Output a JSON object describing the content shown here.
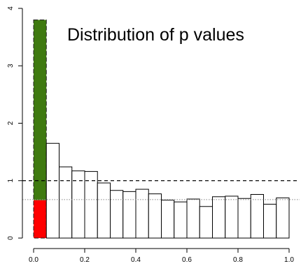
{
  "chart_data": {
    "type": "bar",
    "title": "Distribution of p values",
    "xlabel": "",
    "ylabel": "",
    "xlim": [
      0,
      1
    ],
    "ylim": [
      0,
      4
    ],
    "x_ticks": [
      "0.0",
      "0.2",
      "0.4",
      "0.6",
      "0.8",
      "1.0"
    ],
    "y_ticks": [
      "0",
      "1",
      "2",
      "3",
      "4"
    ],
    "bin_width": 0.05,
    "bins_start": [
      0.0,
      0.05,
      0.1,
      0.15,
      0.2,
      0.25,
      0.3,
      0.35,
      0.4,
      0.45,
      0.5,
      0.55,
      0.6,
      0.65,
      0.7,
      0.75,
      0.8,
      0.85,
      0.9,
      0.95
    ],
    "values": [
      3.8,
      1.65,
      1.24,
      1.17,
      1.16,
      0.96,
      0.83,
      0.81,
      0.85,
      0.77,
      0.66,
      0.63,
      0.68,
      0.55,
      0.72,
      0.73,
      0.69,
      0.76,
      0.59,
      0.7
    ],
    "first_bin_split": {
      "red": 0.66,
      "green": 3.14
    },
    "reference_lines": [
      {
        "y": 1.0,
        "style": "dashed"
      },
      {
        "y": 0.67,
        "style": "dotted"
      }
    ],
    "colors": {
      "green": "#3f7a10",
      "red": "#ff0000",
      "bar": "#ffffff",
      "outline": "#000000"
    }
  }
}
